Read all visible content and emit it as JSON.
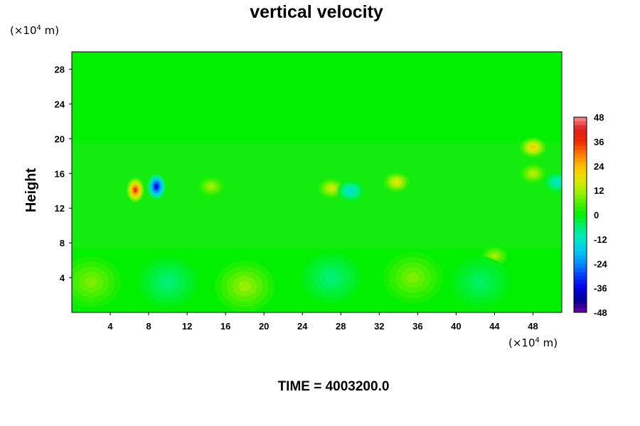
{
  "chart_data": {
    "type": "heatmap",
    "title": "vertical velocity",
    "ylabel": "Height",
    "xlabel": "",
    "x_unit_prefix": "(×10",
    "x_unit_exp": "4",
    "x_unit_suffix": " m)",
    "y_unit_prefix": "(×10",
    "y_unit_exp": "4",
    "y_unit_suffix": " m)",
    "footer": "TIME = 4003200.0",
    "xlim": [
      0,
      51
    ],
    "ylim": [
      0,
      30
    ],
    "x_ticks": [
      4,
      8,
      12,
      16,
      20,
      24,
      28,
      32,
      36,
      40,
      44,
      48
    ],
    "y_ticks": [
      4,
      8,
      12,
      16,
      20,
      24,
      28
    ],
    "colorbar": {
      "range": [
        -48,
        48
      ],
      "ticks": [
        48,
        36,
        24,
        12,
        0,
        -12,
        -24,
        -36,
        -48
      ]
    },
    "features": [
      {
        "x": 6.6,
        "y": 14.1,
        "value": 36
      },
      {
        "x": 8.8,
        "y": 14.5,
        "value": -36
      },
      {
        "x": 48.0,
        "y": 19.0,
        "value": 22
      },
      {
        "x": 27.0,
        "y": 14.3,
        "value": 16
      },
      {
        "x": 33.8,
        "y": 15.0,
        "value": 18
      },
      {
        "x": 29.0,
        "y": 14.0,
        "value": -14
      },
      {
        "x": 14.5,
        "y": 14.5,
        "value": 12
      },
      {
        "x": 50.5,
        "y": 15.0,
        "value": -12
      },
      {
        "x": 48.0,
        "y": 16.0,
        "value": 14
      },
      {
        "x": 44.0,
        "y": 6.5,
        "value": 12
      },
      {
        "x": 2.0,
        "y": 3.5,
        "value": 9
      },
      {
        "x": 18.0,
        "y": 3.0,
        "value": 11
      },
      {
        "x": 35.5,
        "y": 4.0,
        "value": 9
      },
      {
        "x": 10.0,
        "y": 3.5,
        "value": -6
      },
      {
        "x": 27.0,
        "y": 4.0,
        "value": -6
      },
      {
        "x": 42.5,
        "y": 3.5,
        "value": -5
      }
    ]
  }
}
